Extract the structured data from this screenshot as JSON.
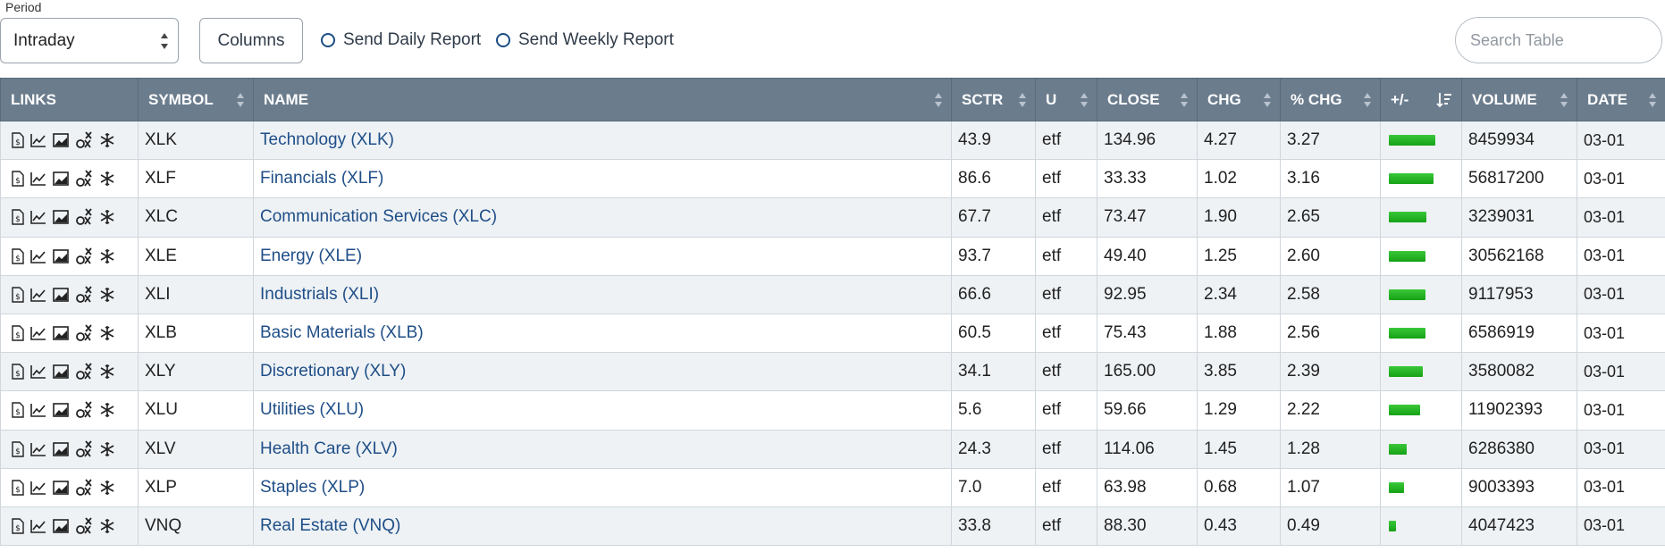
{
  "toolbar": {
    "period_label": "Period",
    "period_value": "Intraday",
    "columns_label": "Columns",
    "daily_report": "Send Daily Report",
    "weekly_report": "Send Weekly Report",
    "search_placeholder": "Search Table"
  },
  "columns": [
    "LINKS",
    "SYMBOL",
    "NAME",
    "SCTR",
    "U",
    "CLOSE",
    "CHG",
    "% CHG",
    "+/-",
    "VOLUME",
    "DATE"
  ],
  "link_icons": [
    "document-dollar-icon",
    "line-chart-icon",
    "area-chart-icon",
    "point-figure-icon",
    "seasonality-icon"
  ],
  "bar_color": "#22b522",
  "header_color": "#6b7c8d",
  "link_color": "#1f4e87",
  "rows": [
    {
      "symbol": "XLK",
      "name": "Technology (XLK)",
      "sctr": "43.9",
      "u": "etf",
      "close": "134.96",
      "chg": "4.27",
      "pct": "3.27",
      "volume": "8459934",
      "date": "03-01"
    },
    {
      "symbol": "XLF",
      "name": "Financials (XLF)",
      "sctr": "86.6",
      "u": "etf",
      "close": "33.33",
      "chg": "1.02",
      "pct": "3.16",
      "volume": "56817200",
      "date": "03-01"
    },
    {
      "symbol": "XLC",
      "name": "Communication Services (XLC)",
      "sctr": "67.7",
      "u": "etf",
      "close": "73.47",
      "chg": "1.90",
      "pct": "2.65",
      "volume": "3239031",
      "date": "03-01"
    },
    {
      "symbol": "XLE",
      "name": "Energy (XLE)",
      "sctr": "93.7",
      "u": "etf",
      "close": "49.40",
      "chg": "1.25",
      "pct": "2.60",
      "volume": "30562168",
      "date": "03-01"
    },
    {
      "symbol": "XLI",
      "name": "Industrials (XLI)",
      "sctr": "66.6",
      "u": "etf",
      "close": "92.95",
      "chg": "2.34",
      "pct": "2.58",
      "volume": "9117953",
      "date": "03-01"
    },
    {
      "symbol": "XLB",
      "name": "Basic Materials (XLB)",
      "sctr": "60.5",
      "u": "etf",
      "close": "75.43",
      "chg": "1.88",
      "pct": "2.56",
      "volume": "6586919",
      "date": "03-01"
    },
    {
      "symbol": "XLY",
      "name": "Discretionary (XLY)",
      "sctr": "34.1",
      "u": "etf",
      "close": "165.00",
      "chg": "3.85",
      "pct": "2.39",
      "volume": "3580082",
      "date": "03-01"
    },
    {
      "symbol": "XLU",
      "name": "Utilities (XLU)",
      "sctr": "5.6",
      "u": "etf",
      "close": "59.66",
      "chg": "1.29",
      "pct": "2.22",
      "volume": "11902393",
      "date": "03-01"
    },
    {
      "symbol": "XLV",
      "name": "Health Care (XLV)",
      "sctr": "24.3",
      "u": "etf",
      "close": "114.06",
      "chg": "1.45",
      "pct": "1.28",
      "volume": "6286380",
      "date": "03-01"
    },
    {
      "symbol": "XLP",
      "name": "Staples (XLP)",
      "sctr": "7.0",
      "u": "etf",
      "close": "63.98",
      "chg": "0.68",
      "pct": "1.07",
      "volume": "9003393",
      "date": "03-01"
    },
    {
      "symbol": "VNQ",
      "name": "Real Estate (VNQ)",
      "sctr": "33.8",
      "u": "etf",
      "close": "88.30",
      "chg": "0.43",
      "pct": "0.49",
      "volume": "4047423",
      "date": "03-01"
    }
  ]
}
